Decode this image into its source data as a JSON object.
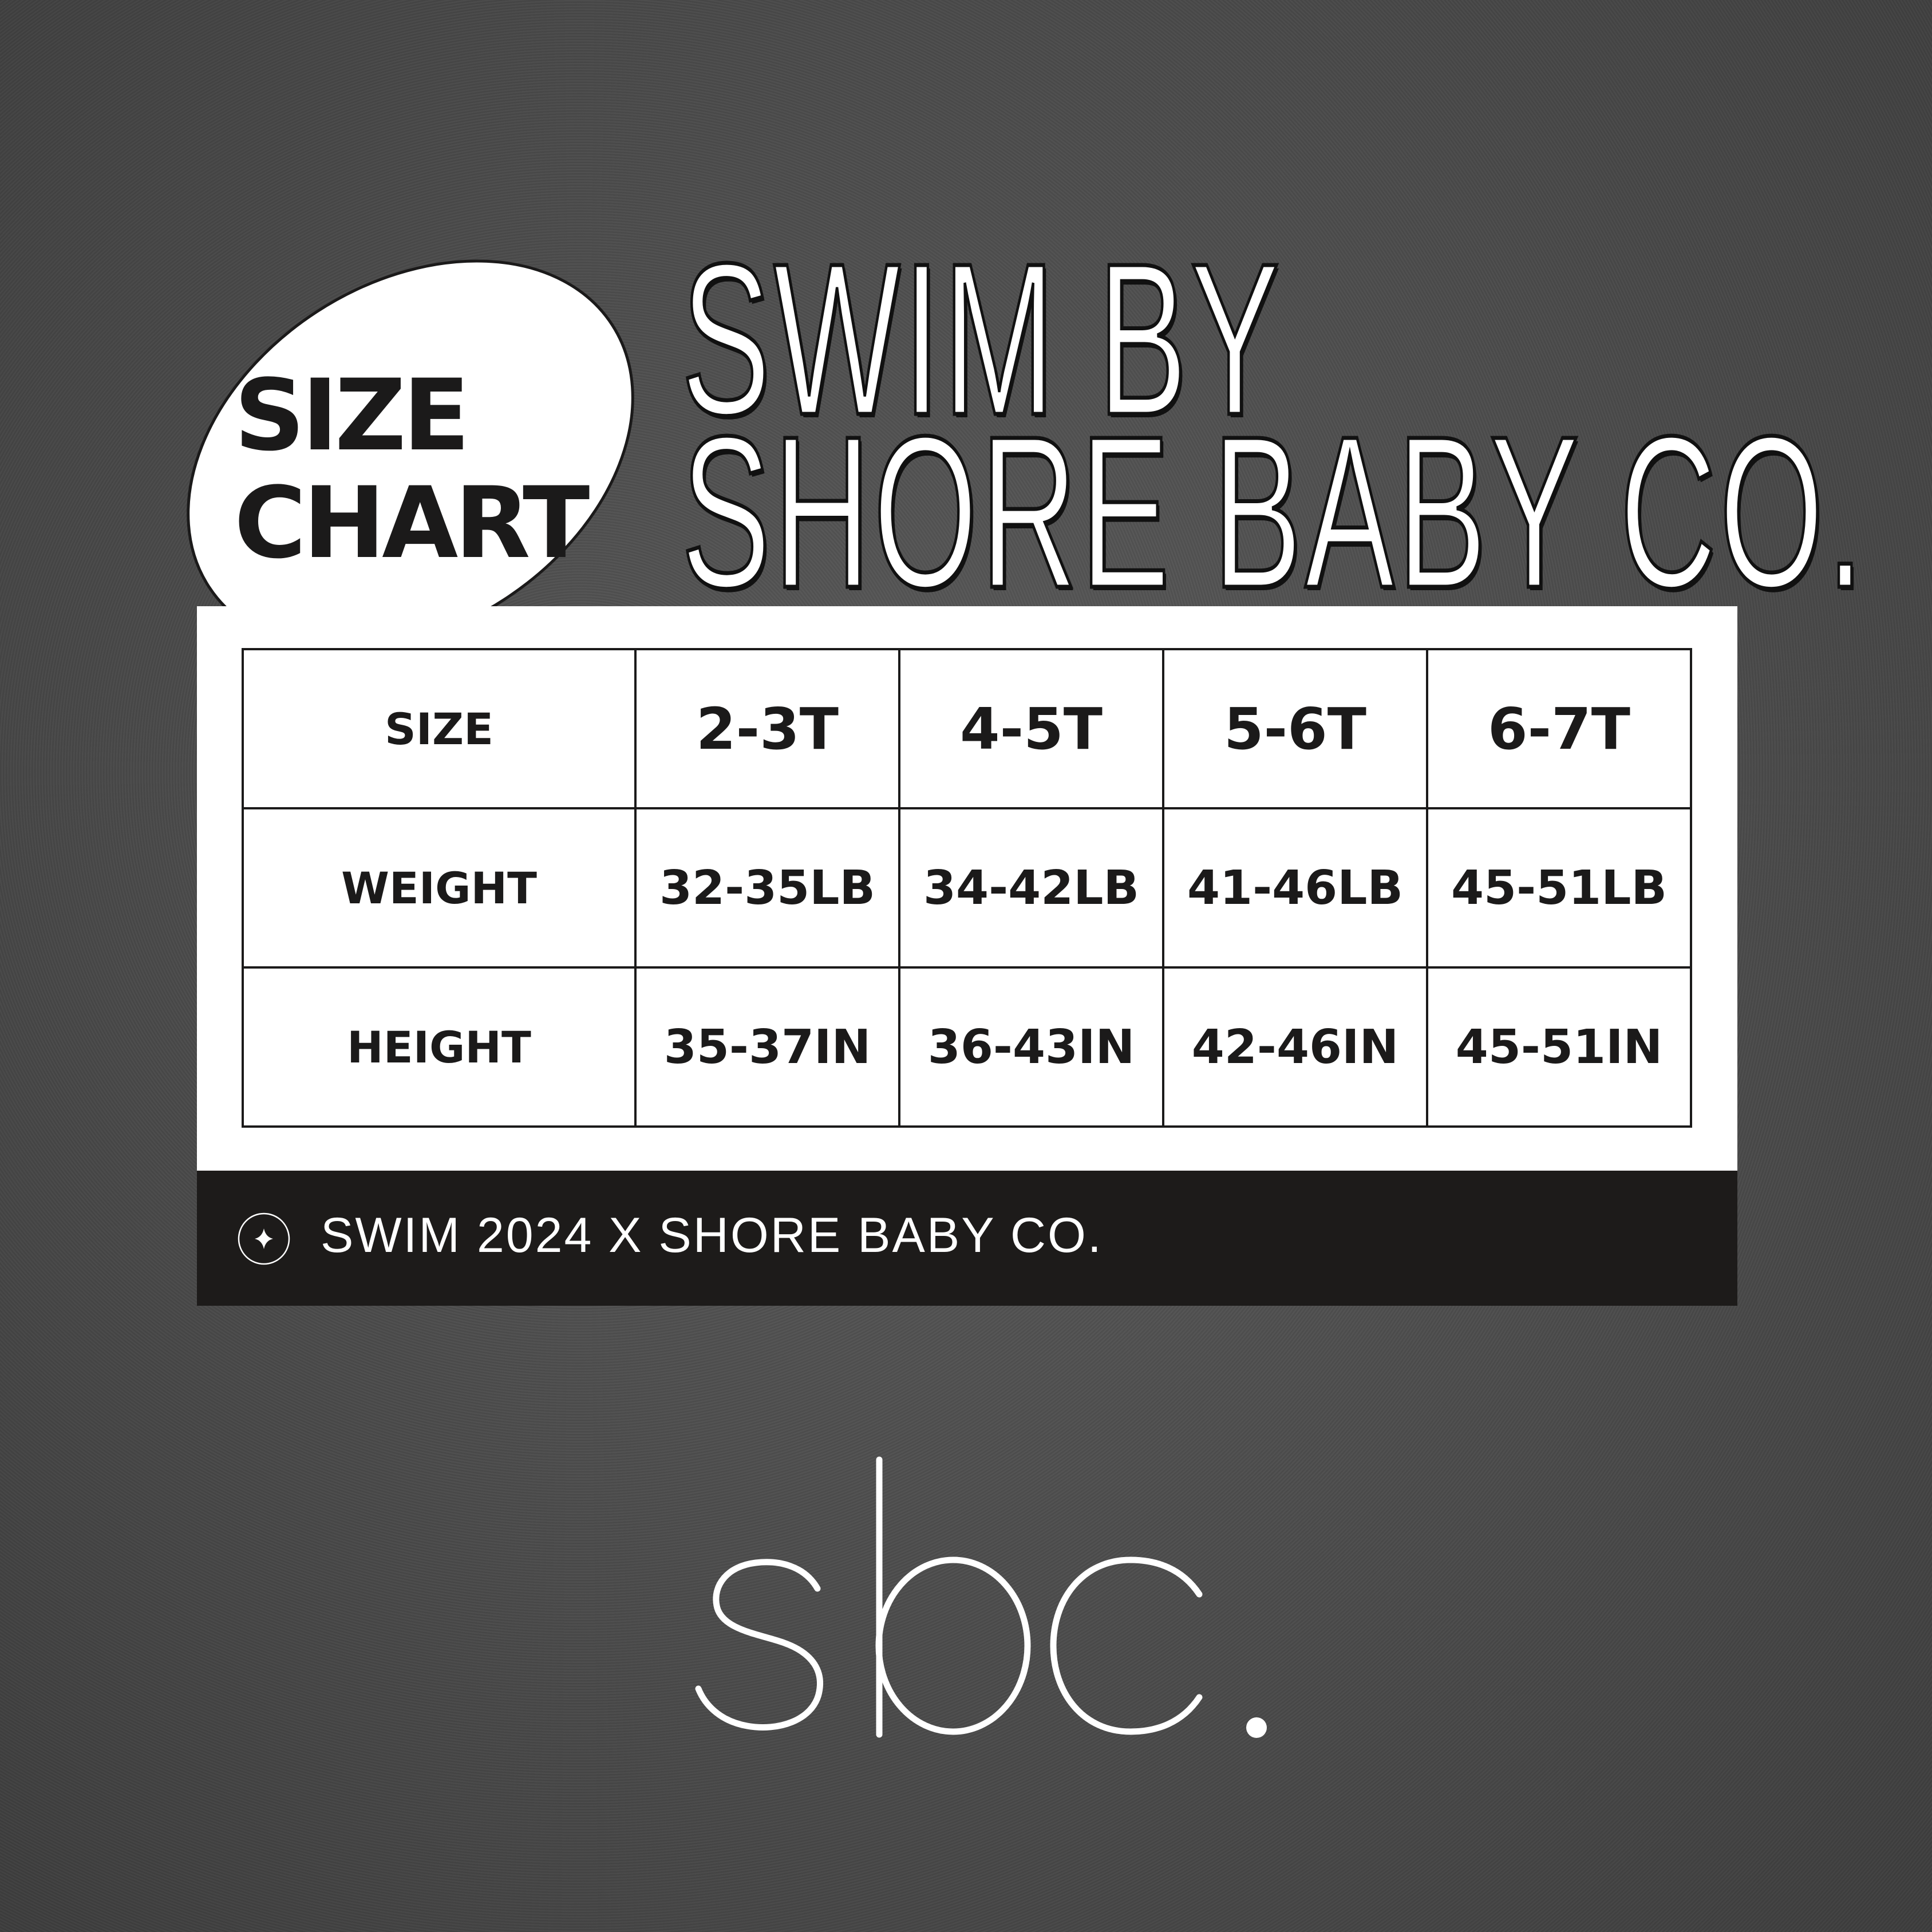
{
  "badge": {
    "line1": "SIZE",
    "line2": "CHART"
  },
  "title": {
    "line1": "SWIM BY",
    "line2": "SHORE BABY CO."
  },
  "table": {
    "header": {
      "label": "SIZE",
      "sizes": [
        "2-3T",
        "4-5T",
        "5-6T",
        "6-7T"
      ]
    },
    "rows": [
      {
        "label": "WEIGHT",
        "values": [
          "32-35LB",
          "34-42LB",
          "41-46LB",
          "45-51LB"
        ]
      },
      {
        "label": "HEIGHT",
        "values": [
          "35-37IN",
          "36-43IN",
          "42-46IN",
          "45-51IN"
        ]
      }
    ]
  },
  "footer": {
    "icon": "sparkle-star-icon",
    "text": "SWIM 2024 X SHORE BABY CO."
  },
  "logo": {
    "text": "sbc."
  },
  "colors": {
    "background": "#4f4f4f",
    "card": "#ffffff",
    "ink": "#1b1a1a",
    "footer_bar": "#1d1b1a"
  }
}
